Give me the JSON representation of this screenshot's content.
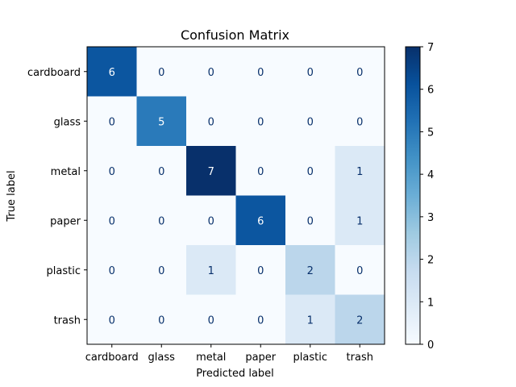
{
  "chart_data": {
    "type": "heatmap",
    "title": "Confusion Matrix",
    "xlabel": "Predicted label",
    "ylabel": "True label",
    "x_categories": [
      "cardboard",
      "glass",
      "metal",
      "paper",
      "plastic",
      "trash"
    ],
    "y_categories": [
      "cardboard",
      "glass",
      "metal",
      "paper",
      "plastic",
      "trash"
    ],
    "matrix": [
      [
        6,
        0,
        0,
        0,
        0,
        0
      ],
      [
        0,
        5,
        0,
        0,
        0,
        0
      ],
      [
        0,
        0,
        7,
        0,
        0,
        1
      ],
      [
        0,
        0,
        0,
        6,
        0,
        1
      ],
      [
        0,
        0,
        1,
        0,
        2,
        0
      ],
      [
        0,
        0,
        0,
        0,
        1,
        2
      ]
    ],
    "colorbar": {
      "range": [
        0,
        7
      ],
      "ticks": [
        "0",
        "1",
        "2",
        "3",
        "4",
        "5",
        "6",
        "7"
      ],
      "colormap": "Blues"
    },
    "grid": false
  }
}
